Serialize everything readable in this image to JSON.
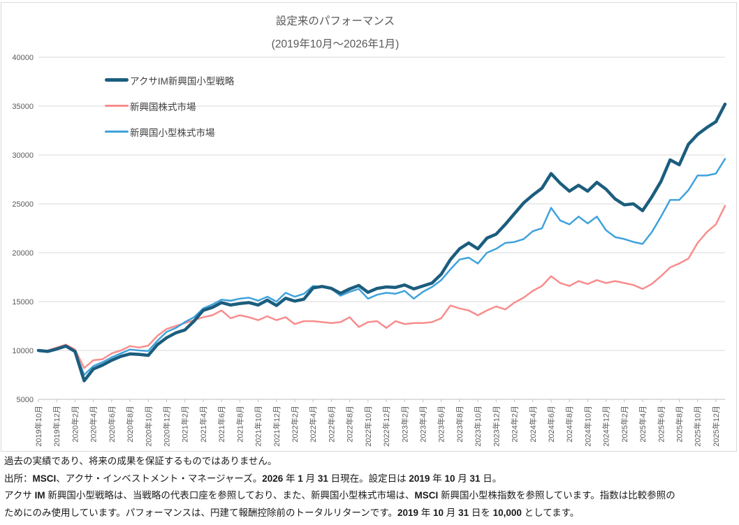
{
  "chart": {
    "title_line1": "設定来のパフォーマンス",
    "title_line2": "(2019年10月～2026年1月)"
  },
  "chart_data": {
    "type": "line",
    "title": "設定来のパフォーマンス",
    "subtitle": "(2019年10月～2026年1月)",
    "x_unit": "month",
    "x_points_total": 76,
    "x_tick_every": 2,
    "x_tick_labels": [
      "2019年10月",
      "2019年12月",
      "2020年2月",
      "2020年4月",
      "2020年6月",
      "2020年8月",
      "2020年10月",
      "2020年12月",
      "2021年2月",
      "2021年4月",
      "2021年6月",
      "2021年8月",
      "2021年10月",
      "2021年12月",
      "2022年2月",
      "2022年4月",
      "2022年6月",
      "2022年8月",
      "2022年10月",
      "2022年12月",
      "2023年2月",
      "2023年4月",
      "2023年6月",
      "2023年8月",
      "2023年10月",
      "2023年12月",
      "2024年2月",
      "2024年4月",
      "2024年6月",
      "2024年8月",
      "2024年10月",
      "2024年12月",
      "2025年2月",
      "2025年4月",
      "2025年6月",
      "2025年8月",
      "2025年10月",
      "2025年12月"
    ],
    "ylim": [
      5000,
      40000
    ],
    "y_tick_step": 5000,
    "y_tick_labels": [
      "5000",
      "10000",
      "15000",
      "20000",
      "25000",
      "30000",
      "35000",
      "40000"
    ],
    "grid": true,
    "legend_position": "inside-top-left",
    "colors": {
      "strategy": "#1b5d7e",
      "em_equity": "#f88d8d",
      "em_smallcap": "#3fa2dc",
      "gridline": "#d9d9d9",
      "axis": "#bfbfbf",
      "text": "#595959"
    },
    "series": [
      {
        "name": "アクサIM新興国小型戦略",
        "color": "#1b5d7e",
        "width": 4.5,
        "values": [
          10000,
          9900,
          10150,
          10450,
          9900,
          6900,
          8100,
          8500,
          9000,
          9400,
          9650,
          9600,
          9500,
          10600,
          11300,
          11800,
          12100,
          13000,
          14100,
          14400,
          14900,
          14650,
          14800,
          14900,
          14650,
          15150,
          14600,
          15350,
          15050,
          15250,
          16400,
          16550,
          16350,
          15850,
          16300,
          16650,
          15950,
          16350,
          16500,
          16450,
          16700,
          16300,
          16600,
          16900,
          17800,
          19300,
          20400,
          21000,
          20400,
          21500,
          21900,
          22900,
          24000,
          25100,
          25900,
          26600,
          28100,
          27100,
          26300,
          26900,
          26300,
          27200,
          26500,
          25500,
          24900,
          25000,
          24300,
          25700,
          27300,
          29500,
          29000,
          31100,
          32100,
          32800,
          33400,
          35200
        ]
      },
      {
        "name": "新興国株式市場",
        "color": "#f88d8d",
        "width": 2.5,
        "values": [
          10000,
          10000,
          10300,
          10600,
          10100,
          8200,
          9000,
          9100,
          9700,
          10000,
          10450,
          10300,
          10500,
          11500,
          12200,
          12500,
          12800,
          13100,
          13400,
          13600,
          14100,
          13300,
          13600,
          13400,
          13100,
          13500,
          13100,
          13400,
          12700,
          13000,
          13000,
          12900,
          12800,
          12900,
          13400,
          12400,
          12900,
          13000,
          12300,
          13000,
          12700,
          12800,
          12800,
          12900,
          13300,
          14600,
          14300,
          14100,
          13600,
          14100,
          14500,
          14200,
          14900,
          15400,
          16100,
          16600,
          17600,
          16900,
          16600,
          17100,
          16800,
          17200,
          16900,
          17100,
          16900,
          16700,
          16300,
          16800,
          17600,
          18500,
          18900,
          19400,
          21000,
          22100,
          22900,
          24800
        ]
      },
      {
        "name": "新興国小型株式市場",
        "color": "#3fa2dc",
        "width": 2.5,
        "values": [
          10000,
          9950,
          10200,
          10500,
          9950,
          7500,
          8400,
          8800,
          9300,
          9700,
          10100,
          10000,
          9950,
          11000,
          11900,
          12300,
          12900,
          13400,
          14300,
          14700,
          15200,
          15100,
          15300,
          15400,
          15100,
          15500,
          15000,
          15900,
          15500,
          15800,
          16600,
          16500,
          16300,
          15600,
          16000,
          16300,
          15300,
          15700,
          15900,
          15800,
          16100,
          15300,
          16000,
          16500,
          17200,
          18300,
          19300,
          19500,
          18900,
          20000,
          20400,
          21000,
          21100,
          21400,
          22200,
          22500,
          24600,
          23300,
          22900,
          23700,
          23000,
          23700,
          22300,
          21600,
          21400,
          21100,
          20900,
          22100,
          23700,
          25400,
          25400,
          26400,
          27900,
          27900,
          28100,
          29600
        ]
      }
    ]
  },
  "footer": {
    "lines": [
      [
        {
          "t": "過去の実績であり、将来の成果を保証するものではありません。",
          "b": false
        }
      ],
      [
        {
          "t": "出所：",
          "b": false
        },
        {
          "t": "MSCI",
          "b": true
        },
        {
          "t": "、アクサ・インベストメント・マネージャーズ。",
          "b": false
        },
        {
          "t": "2026",
          "b": true
        },
        {
          "t": " 年 ",
          "b": false
        },
        {
          "t": "1",
          "b": true
        },
        {
          "t": " 月 ",
          "b": false
        },
        {
          "t": "31",
          "b": true
        },
        {
          "t": " 日現在。設定日は ",
          "b": false
        },
        {
          "t": "2019",
          "b": true
        },
        {
          "t": " 年 ",
          "b": false
        },
        {
          "t": "10",
          "b": true
        },
        {
          "t": " 月 ",
          "b": false
        },
        {
          "t": "31",
          "b": true
        },
        {
          "t": " 日。",
          "b": false
        }
      ],
      [
        {
          "t": "アクサ ",
          "b": false
        },
        {
          "t": "IM",
          "b": true
        },
        {
          "t": " 新興国小型戦略は、当戦略の代表口座を参照しており、また、新興国小型株式市場は、",
          "b": false
        },
        {
          "t": "MSCI",
          "b": true
        },
        {
          "t": " 新興国小型株指数を参照しています。指数は比較参照の",
          "b": false
        }
      ],
      [
        {
          "t": "ためにのみ使用しています。パフォーマンスは、円建て報酬控除前のトータルリターンです。",
          "b": false
        },
        {
          "t": "2019",
          "b": true
        },
        {
          "t": " 年 ",
          "b": false
        },
        {
          "t": "10",
          "b": true
        },
        {
          "t": " 月 ",
          "b": false
        },
        {
          "t": "31",
          "b": true
        },
        {
          "t": " 日を ",
          "b": false
        },
        {
          "t": "10,000",
          "b": true
        },
        {
          "t": " としてます。",
          "b": false
        }
      ]
    ]
  }
}
